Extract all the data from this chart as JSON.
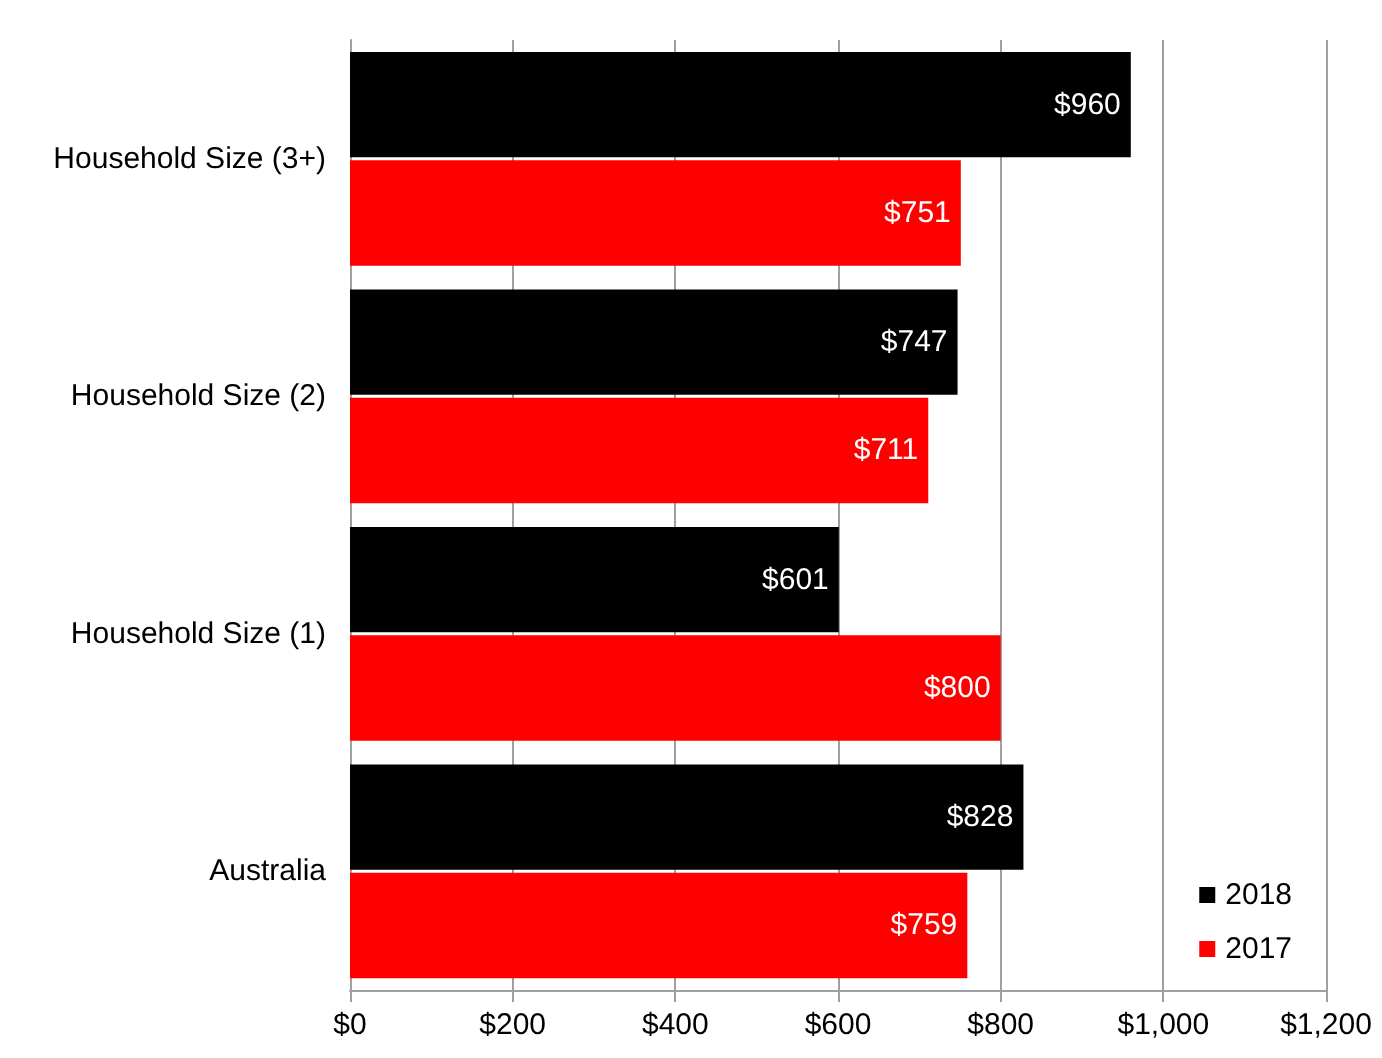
{
  "chart_data": {
    "type": "bar",
    "orientation": "horizontal",
    "categories": [
      "Household Size (3+)",
      "Household Size (2)",
      "Household Size (1)",
      "Australia"
    ],
    "series": [
      {
        "name": "2018",
        "color": "#000000",
        "values": [
          960,
          747,
          601,
          828
        ],
        "value_labels": [
          "$960",
          "$747",
          "$601",
          "$828"
        ]
      },
      {
        "name": "2017",
        "color": "#ff0000",
        "values": [
          751,
          711,
          800,
          759
        ],
        "value_labels": [
          "$751",
          "$711",
          "$800",
          "$759"
        ]
      }
    ],
    "xlim": [
      0,
      1200
    ],
    "xticks": [
      {
        "value": 0,
        "label": "$0"
      },
      {
        "value": 200,
        "label": "$200"
      },
      {
        "value": 400,
        "label": "$400"
      },
      {
        "value": 600,
        "label": "$600"
      },
      {
        "value": 800,
        "label": "$800"
      },
      {
        "value": 1000,
        "label": "$1,000"
      },
      {
        "value": 1200,
        "label": "$1,200"
      }
    ],
    "grid": "x",
    "legend": "bottom right"
  }
}
